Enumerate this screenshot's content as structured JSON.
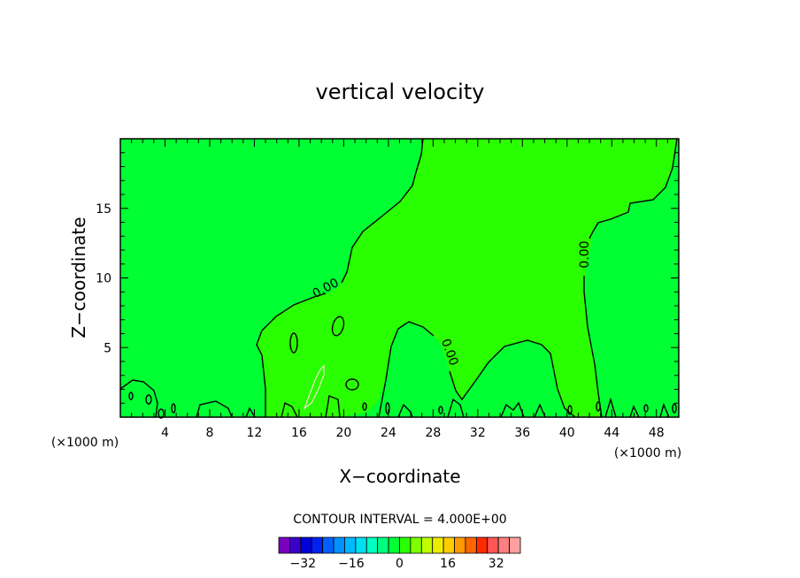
{
  "chart_data": {
    "type": "contour",
    "title": "vertical velocity",
    "xlabel": "X−coordinate",
    "ylabel": "Z−coordinate",
    "x_unit_left": "(×1000 m)",
    "x_unit_right": "(×1000 m)",
    "xlim": [
      0,
      50
    ],
    "ylim": [
      0,
      20
    ],
    "x_ticks": [
      4,
      8,
      12,
      16,
      20,
      24,
      28,
      32,
      36,
      40,
      44,
      48
    ],
    "x_tick_labels": [
      "4",
      "8",
      "12",
      "16",
      "20",
      "24",
      "28",
      "32",
      "36",
      "40",
      "44",
      "48"
    ],
    "y_ticks": [
      5,
      10,
      15
    ],
    "y_tick_labels": [
      "5",
      "10",
      "15"
    ],
    "contour_labels": [
      "0.00",
      "0.00",
      "0.00"
    ],
    "contour_interval_text": "CONTOUR INTERVAL = 4.000E+00",
    "contour_interval": 4.0,
    "fill_colors": {
      "negative_region": "#00ff33",
      "positive_region": "#29ff00"
    },
    "colorbar": {
      "min": -40,
      "max": 40,
      "step": 4,
      "tick_values": [
        -32,
        -16,
        0,
        16,
        32
      ],
      "tick_labels": [
        "−32",
        "−16",
        "0",
        "16",
        "32"
      ],
      "colors": [
        "#7a00c0",
        "#3c00c8",
        "#0000d8",
        "#0022f0",
        "#0060ff",
        "#0090ff",
        "#00b8ff",
        "#00e0f0",
        "#00ffc0",
        "#00ff80",
        "#00ff33",
        "#29ff00",
        "#80ff00",
        "#c0ff00",
        "#ecec00",
        "#ffcc00",
        "#ff9900",
        "#ff6600",
        "#ff2a00",
        "#ff5555",
        "#ff7f7f",
        "#ff9f9f"
      ]
    }
  }
}
